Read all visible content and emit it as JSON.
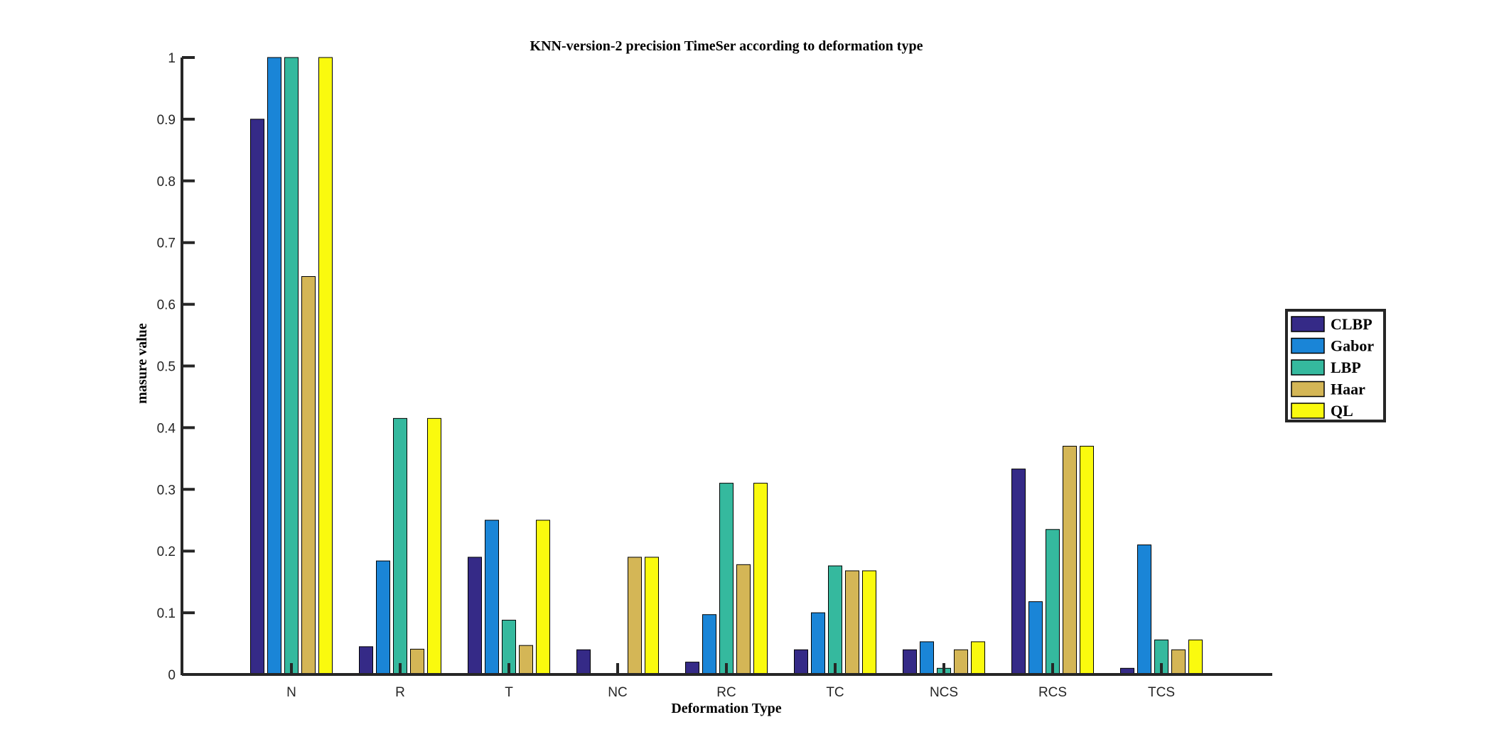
{
  "chart_data": {
    "type": "bar",
    "title": "KNN-version-2 precision TimeSer according to deformation type",
    "xlabel": "Deformation Type",
    "ylabel": "masure value",
    "ylim": [
      0,
      1
    ],
    "yticks": [
      "0",
      "0.1",
      "0.2",
      "0.3",
      "0.4",
      "0.5",
      "0.6",
      "0.7",
      "0.8",
      "0.9",
      "1"
    ],
    "categories": [
      "N",
      "R",
      "T",
      "NC",
      "RC",
      "TC",
      "NCS",
      "RCS",
      "TCS"
    ],
    "legend_position": "right",
    "series": [
      {
        "name": "CLBP",
        "color": "#352a87",
        "values": [
          0.9,
          0.045,
          0.19,
          0.04,
          0.02,
          0.04,
          0.04,
          0.333,
          0.01
        ]
      },
      {
        "name": "Gabor",
        "color": "#1a85d7",
        "values": [
          1.0,
          0.184,
          0.25,
          0.0,
          0.097,
          0.1,
          0.053,
          0.118,
          0.21
        ]
      },
      {
        "name": "LBP",
        "color": "#35b99e",
        "values": [
          1.0,
          0.415,
          0.088,
          0.0,
          0.31,
          0.176,
          0.01,
          0.235,
          0.056
        ]
      },
      {
        "name": "Haar",
        "color": "#d4b656",
        "values": [
          0.645,
          0.041,
          0.047,
          0.19,
          0.178,
          0.168,
          0.04,
          0.37,
          0.04
        ]
      },
      {
        "name": "QL",
        "color": "#fafa0e",
        "values": [
          1.0,
          0.415,
          0.25,
          0.19,
          0.31,
          0.168,
          0.053,
          0.37,
          0.056
        ]
      }
    ]
  }
}
